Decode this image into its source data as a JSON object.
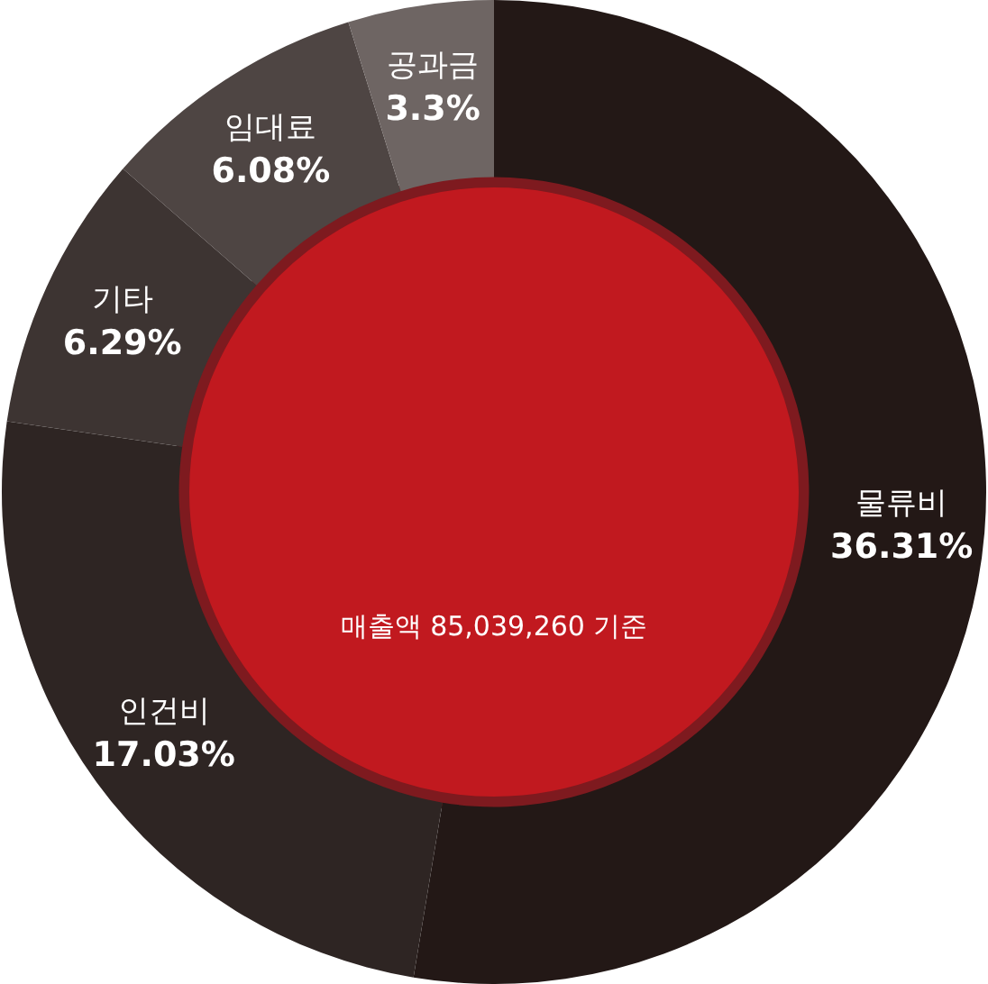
{
  "chart_data": {
    "type": "donut",
    "categories": [
      "물류비",
      "인건비",
      "기타",
      "임대료",
      "공과금"
    ],
    "values": [
      36.31,
      17.03,
      6.29,
      6.08,
      3.3
    ],
    "colors": [
      "#231816",
      "#2e2523",
      "#3d3432",
      "#4e4543",
      "#6e6563"
    ],
    "value_labels": [
      "36.31%",
      "17.03%",
      "6.29%",
      "6.08%",
      "3.3%"
    ],
    "annotations": [
      "매출액 85,039,260 기준"
    ],
    "legend": false
  }
}
